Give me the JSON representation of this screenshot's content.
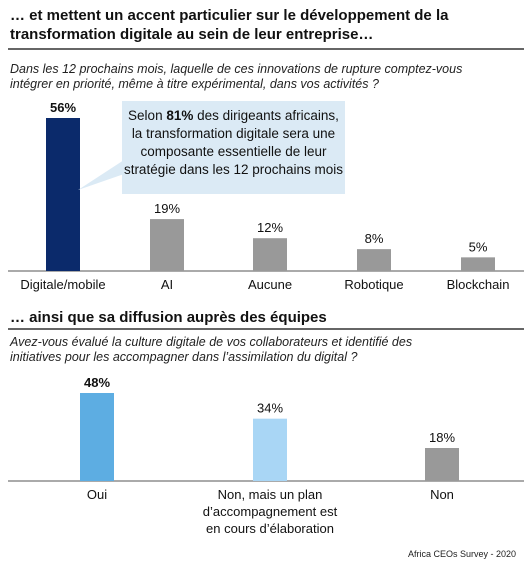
{
  "section1": {
    "title": "… et mettent un accent particulier sur le développement de la\ntransformation digitale au sein de leur entreprise…",
    "question": "Dans les 12 prochains mois, laquelle de ces innovations de rupture comptez-vous\nintégrer en priorité, même à titre expérimental, dans vos activités ?"
  },
  "callout": {
    "before": "Selon ",
    "highlight": "81%",
    "after": " des dirigeants africains, la transformation digitale sera une composante essentielle de leur stratégie dans les 12 prochains mois"
  },
  "section2": {
    "title": "… ainsi que sa diffusion auprès des équipes",
    "question": "Avez-vous évalué la culture digitale de vos collaborateurs et identifié des\ninitiatives pour les accompagner dans l’assimilation du digital ?"
  },
  "source": "Africa CEOs Survey - 2020",
  "colors": {
    "navy": "#0b2a6b",
    "gray": "#999999",
    "blue": "#5dade2",
    "light_blue": "#a9d6f5",
    "callout_bg": "#dbeaf5"
  },
  "chart_data": [
    {
      "type": "bar",
      "categories": [
        "Digitale/mobile",
        "AI",
        "Aucune",
        "Robotique",
        "Blockchain"
      ],
      "values": [
        56,
        19,
        12,
        8,
        5
      ],
      "value_labels": [
        "56%",
        "19%",
        "12%",
        "8%",
        "5%"
      ],
      "colors": [
        "#0b2a6b",
        "#999999",
        "#999999",
        "#999999",
        "#999999"
      ],
      "bold_label_index": 0,
      "ylim": [
        0,
        56
      ]
    },
    {
      "type": "bar",
      "categories": [
        "Oui",
        "Non, mais un plan\nd’accompagnement est\nen cours d’élaboration",
        "Non"
      ],
      "values": [
        48,
        34,
        18
      ],
      "value_labels": [
        "48%",
        "34%",
        "18%"
      ],
      "colors": [
        "#5dade2",
        "#a9d6f5",
        "#999999"
      ],
      "bold_label_index": 0,
      "ylim": [
        0,
        48
      ]
    }
  ]
}
